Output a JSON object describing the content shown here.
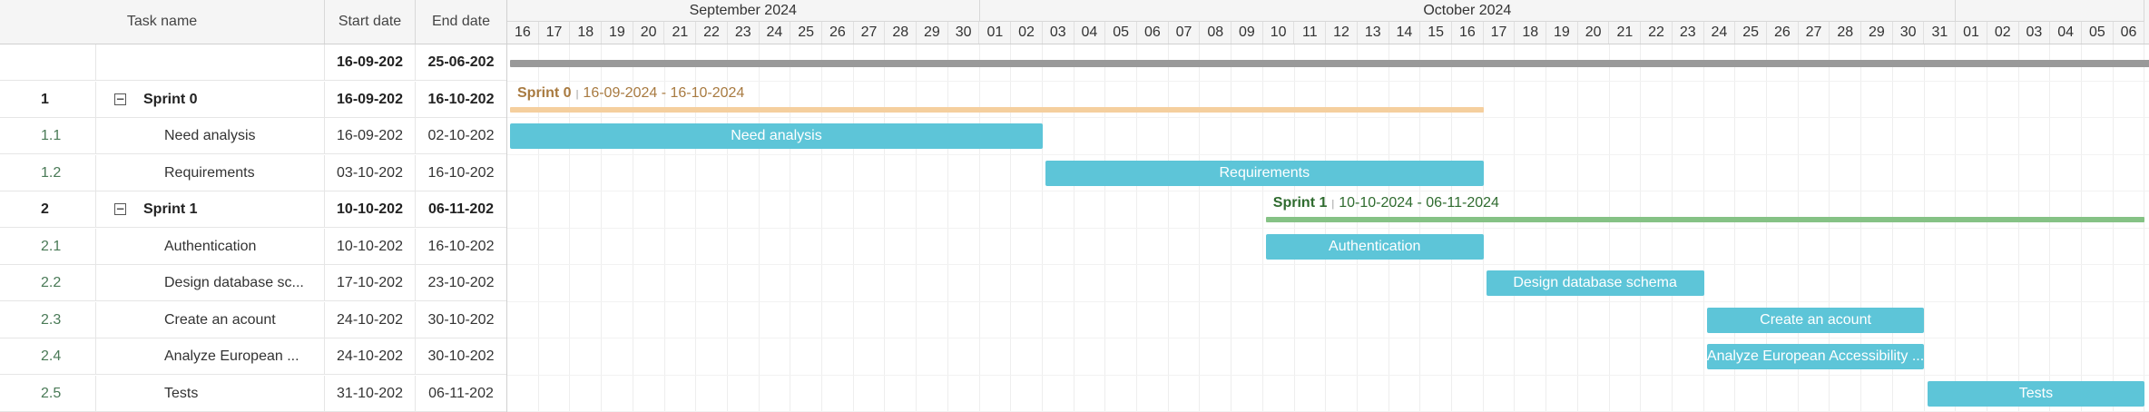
{
  "grid": {
    "columns": {
      "task_name": "Task name",
      "start_date": "Start date",
      "end_date": "End date"
    },
    "rows": [
      {
        "id": "",
        "name": "",
        "start": "16-09-202",
        "end": "25-06-202",
        "kind": "project"
      },
      {
        "id": "1",
        "name": "Sprint 0",
        "start": "16-09-202",
        "end": "16-10-202",
        "kind": "summary",
        "toggle": "⊟"
      },
      {
        "id": "1.1",
        "name": "Need analysis",
        "start": "16-09-202",
        "end": "02-10-202",
        "kind": "task"
      },
      {
        "id": "1.2",
        "name": "Requirements",
        "start": "03-10-202",
        "end": "16-10-202",
        "kind": "task"
      },
      {
        "id": "2",
        "name": "Sprint 1",
        "start": "10-10-202",
        "end": "06-11-202",
        "kind": "summary",
        "toggle": "⊟"
      },
      {
        "id": "2.1",
        "name": "Authentication",
        "start": "10-10-202",
        "end": "16-10-202",
        "kind": "task"
      },
      {
        "id": "2.2",
        "name": "Design database sc...",
        "start": "17-10-202",
        "end": "23-10-202",
        "kind": "task"
      },
      {
        "id": "2.3",
        "name": "Create an acount",
        "start": "24-10-202",
        "end": "30-10-202",
        "kind": "task"
      },
      {
        "id": "2.4",
        "name": "Analyze European ...",
        "start": "24-10-202",
        "end": "30-10-202",
        "kind": "task"
      },
      {
        "id": "2.5",
        "name": "Tests",
        "start": "31-10-202",
        "end": "06-11-202",
        "kind": "task"
      }
    ]
  },
  "timeline": {
    "months": [
      {
        "label": "September 2024",
        "days": [
          "16",
          "17",
          "18",
          "19",
          "20",
          "21",
          "22",
          "23",
          "24",
          "25",
          "26",
          "27",
          "28",
          "29",
          "30"
        ]
      },
      {
        "label": "October 2024",
        "days": [
          "01",
          "02",
          "03",
          "04",
          "05",
          "06",
          "07",
          "08",
          "09",
          "10",
          "11",
          "12",
          "13",
          "14",
          "15",
          "16",
          "17",
          "18",
          "19",
          "20",
          "21",
          "22",
          "23",
          "24",
          "25",
          "26",
          "27",
          "28",
          "29",
          "30",
          "31"
        ]
      },
      {
        "label": "",
        "days": [
          "01",
          "02",
          "03",
          "04",
          "05",
          "06"
        ]
      }
    ],
    "project_bar": {
      "start_index": 0,
      "color": "#999999"
    },
    "summaries": [
      {
        "row": 1,
        "name": "Sprint 0",
        "dates": "16-09-2024 - 16-10-2024",
        "start_index": 0,
        "end_index": 31,
        "color": "#f5cf9e",
        "text_color": "#a87a40"
      },
      {
        "row": 4,
        "name": "Sprint 1",
        "dates": "10-10-2024 - 06-11-2024",
        "start_index": 24,
        "end_index": 52,
        "color": "#85c285",
        "text_color": "#2f6b2f"
      }
    ],
    "tasks": [
      {
        "row": 2,
        "label": "Need analysis",
        "start_index": 0,
        "end_index": 17
      },
      {
        "row": 3,
        "label": "Requirements",
        "start_index": 17,
        "end_index": 31
      },
      {
        "row": 5,
        "label": "Authentication",
        "start_index": 24,
        "end_index": 31
      },
      {
        "row": 6,
        "label": "Design database schema",
        "start_index": 31,
        "end_index": 38
      },
      {
        "row": 7,
        "label": "Create an acount",
        "start_index": 38,
        "end_index": 45
      },
      {
        "row": 8,
        "label": "Analyze European Accessibility ...",
        "start_index": 38,
        "end_index": 45
      },
      {
        "row": 9,
        "label": "Tests",
        "start_index": 45,
        "end_index": 52
      }
    ],
    "task_color": "#5dc5d8"
  }
}
